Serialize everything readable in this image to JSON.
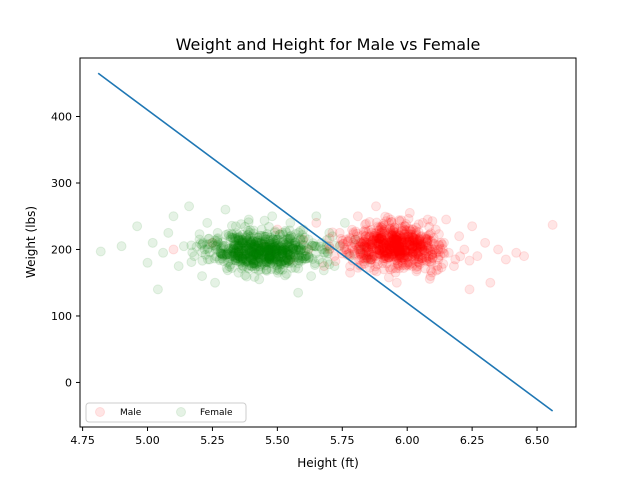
{
  "chart_data": {
    "type": "scatter",
    "title": "Weight and Height for Male vs Female",
    "xlabel": "Height (ft)",
    "ylabel": "Weight (lbs)",
    "xlim": [
      4.74,
      6.65
    ],
    "ylim": [
      -67,
      488
    ],
    "xticks": [
      "4.75",
      "5.00",
      "5.25",
      "5.50",
      "5.75",
      "6.00",
      "6.25",
      "6.50"
    ],
    "xtick_values": [
      4.75,
      5.0,
      5.25,
      5.5,
      5.75,
      6.0,
      6.25,
      6.5
    ],
    "yticks": [
      "0",
      "100",
      "200",
      "300",
      "400"
    ],
    "ytick_values": [
      0,
      100,
      200,
      300,
      400
    ],
    "grid": false,
    "legend_position": "lower-left",
    "series": [
      {
        "name": "Male",
        "color": "#ff0000",
        "alpha": 0.1,
        "points": [
          [
            5.1,
            200
          ],
          [
            5.25,
            210
          ],
          [
            5.35,
            195
          ],
          [
            5.45,
            205
          ],
          [
            5.5,
            230
          ],
          [
            5.55,
            185
          ],
          [
            5.6,
            215
          ],
          [
            5.62,
            200
          ],
          [
            5.65,
            240
          ],
          [
            5.68,
            175
          ],
          [
            5.7,
            205
          ],
          [
            5.72,
            190
          ],
          [
            5.74,
            225
          ],
          [
            5.76,
            200
          ],
          [
            5.78,
            165
          ],
          [
            5.8,
            215
          ],
          [
            5.81,
            250
          ],
          [
            5.83,
            195
          ],
          [
            5.85,
            210
          ],
          [
            5.86,
            180
          ],
          [
            5.88,
            265
          ],
          [
            5.89,
            200
          ],
          [
            5.9,
            225
          ],
          [
            5.91,
            170
          ],
          [
            5.92,
            205
          ],
          [
            5.93,
            240
          ],
          [
            5.94,
            190
          ],
          [
            5.95,
            215
          ],
          [
            5.96,
            150
          ],
          [
            5.97,
            200
          ],
          [
            5.98,
            230
          ],
          [
            5.99,
            185
          ],
          [
            6.0,
            210
          ],
          [
            6.01,
            255
          ],
          [
            6.02,
            195
          ],
          [
            6.03,
            220
          ],
          [
            6.04,
            175
          ],
          [
            6.05,
            205
          ],
          [
            6.06,
            240
          ],
          [
            6.07,
            190
          ],
          [
            6.08,
            215
          ],
          [
            6.09,
            160
          ],
          [
            6.1,
            200
          ],
          [
            6.11,
            230
          ],
          [
            6.12,
            185
          ],
          [
            6.13,
            210
          ],
          [
            6.15,
            245
          ],
          [
            6.16,
            195
          ],
          [
            6.18,
            175
          ],
          [
            6.2,
            220
          ],
          [
            6.22,
            200
          ],
          [
            6.24,
            140
          ],
          [
            6.25,
            235
          ],
          [
            6.27,
            190
          ],
          [
            6.3,
            210
          ],
          [
            6.32,
            150
          ],
          [
            6.35,
            200
          ],
          [
            6.38,
            185
          ],
          [
            6.42,
            195
          ],
          [
            6.45,
            190
          ],
          [
            6.56,
            237
          ]
        ]
      },
      {
        "name": "Female",
        "color": "#008000",
        "alpha": 0.1,
        "points": [
          [
            4.82,
            197
          ],
          [
            4.9,
            205
          ],
          [
            4.96,
            235
          ],
          [
            5.0,
            180
          ],
          [
            5.02,
            210
          ],
          [
            5.04,
            140
          ],
          [
            5.06,
            195
          ],
          [
            5.08,
            225
          ],
          [
            5.1,
            250
          ],
          [
            5.12,
            175
          ],
          [
            5.14,
            205
          ],
          [
            5.16,
            265
          ],
          [
            5.18,
            190
          ],
          [
            5.2,
            215
          ],
          [
            5.21,
            160
          ],
          [
            5.22,
            200
          ],
          [
            5.23,
            240
          ],
          [
            5.24,
            185
          ],
          [
            5.25,
            210
          ],
          [
            5.26,
            150
          ],
          [
            5.27,
            225
          ],
          [
            5.28,
            195
          ],
          [
            5.29,
            205
          ],
          [
            5.3,
            260
          ],
          [
            5.31,
            180
          ],
          [
            5.32,
            215
          ],
          [
            5.33,
            200
          ],
          [
            5.34,
            235
          ],
          [
            5.35,
            165
          ],
          [
            5.36,
            205
          ],
          [
            5.37,
            190
          ],
          [
            5.38,
            220
          ],
          [
            5.39,
            245
          ],
          [
            5.4,
            175
          ],
          [
            5.41,
            200
          ],
          [
            5.42,
            210
          ],
          [
            5.43,
            155
          ],
          [
            5.44,
            230
          ],
          [
            5.45,
            195
          ],
          [
            5.46,
            205
          ],
          [
            5.47,
            185
          ],
          [
            5.48,
            250
          ],
          [
            5.49,
            200
          ],
          [
            5.5,
            215
          ],
          [
            5.51,
            170
          ],
          [
            5.52,
            225
          ],
          [
            5.53,
            195
          ],
          [
            5.54,
            205
          ],
          [
            5.55,
            240
          ],
          [
            5.56,
            180
          ],
          [
            5.57,
            210
          ],
          [
            5.58,
            135
          ],
          [
            5.59,
            200
          ],
          [
            5.6,
            230
          ],
          [
            5.61,
            190
          ],
          [
            5.62,
            215
          ],
          [
            5.63,
            160
          ],
          [
            5.64,
            205
          ],
          [
            5.65,
            250
          ],
          [
            5.66,
            185
          ],
          [
            5.67,
            210
          ],
          [
            5.68,
            195
          ],
          [
            5.7,
            225
          ],
          [
            5.72,
            175
          ],
          [
            5.74,
            205
          ],
          [
            5.76,
            240
          ],
          [
            5.78,
            190
          ],
          [
            5.8,
            215
          ],
          [
            5.82,
            200
          ],
          [
            5.85,
            185
          ]
        ]
      }
    ],
    "lines": [
      {
        "color": "#1f77b4",
        "x": [
          4.81,
          6.56
        ],
        "y": [
          465,
          -43
        ]
      }
    ]
  }
}
